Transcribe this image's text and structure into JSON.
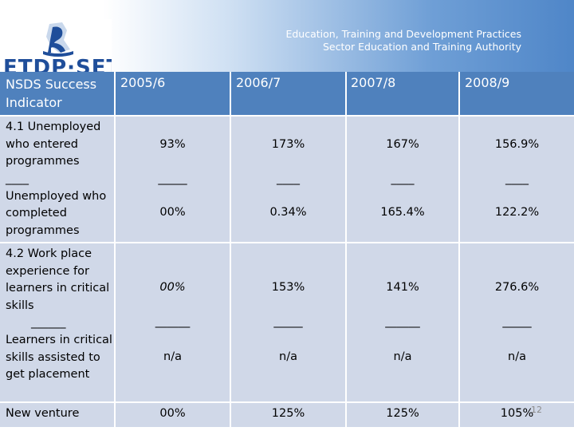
{
  "header": {
    "logo_text": "ETDP·SETA",
    "org_line_1": "Education, Training and Development Practices",
    "org_line_2": "Sector Education and Training Authority"
  },
  "table": {
    "columns": [
      "NSDS Success Indicator",
      "2005/6",
      "2006/7",
      "2007/8",
      "2008/9"
    ],
    "rows": [
      {
        "label_a": "4.1 Unemployed who entered programmes",
        "sep": "____",
        "label_b": "Unemployed who completed programmes",
        "values_a": [
          "93%",
          "173%",
          "167%",
          "156.9%"
        ],
        "seps": [
          "_____",
          "____",
          "____",
          "____"
        ],
        "values_b": [
          "00%",
          "0.34%",
          "165.4%",
          "122.2%"
        ]
      },
      {
        "label_a": "4.2 Work place experience for learners in critical skills",
        "sep": "______",
        "label_b": "Learners in critical skills assisted to get placement",
        "values_a": [
          "00%",
          "153%",
          "141%",
          "276.6%"
        ],
        "seps": [
          "______",
          "_____",
          "______",
          "_____"
        ],
        "values_b": [
          "n/a",
          "n/a",
          "n/a",
          "n/a"
        ]
      },
      {
        "label": "New venture",
        "values": [
          "00%",
          "125%",
          "125%",
          "105%"
        ]
      }
    ]
  },
  "page_number": "12"
}
